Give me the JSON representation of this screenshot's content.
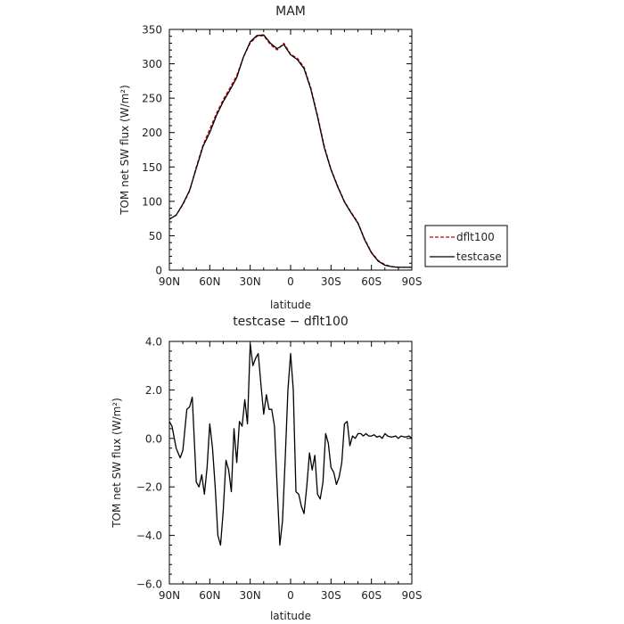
{
  "chart_data": [
    {
      "type": "line",
      "title": "MAM",
      "xlabel": "latitude",
      "ylabel": "TOM net SW flux (W/m²)",
      "xlim": [
        90,
        -90
      ],
      "ylim": [
        0,
        350
      ],
      "x_ticks": [
        90,
        60,
        30,
        0,
        -30,
        -60,
        -90
      ],
      "x_tick_labels": [
        "90N",
        "60N",
        "30N",
        "0",
        "30S",
        "60S",
        "90S"
      ],
      "y_ticks": [
        0,
        50,
        100,
        150,
        200,
        250,
        300,
        350
      ],
      "y_tick_labels": [
        "0",
        "50",
        "100",
        "150",
        "200",
        "250",
        "300",
        "350"
      ],
      "legend": [
        "dflt100",
        "testcase"
      ],
      "legend_placement": "right",
      "series": [
        {
          "name": "dflt100",
          "color": "#cc0000",
          "style": "dashed",
          "x": [
            90,
            85,
            80,
            75,
            70,
            65,
            60,
            55,
            50,
            45,
            40,
            35,
            30,
            25,
            20,
            15,
            10,
            5,
            0,
            -5,
            -10,
            -15,
            -20,
            -25,
            -30,
            -35,
            -40,
            -45,
            -50,
            -55,
            -60,
            -65,
            -70,
            -75,
            -80,
            -85,
            -90
          ],
          "y": [
            74,
            80,
            95,
            115,
            150,
            182,
            205,
            228,
            248,
            265,
            283,
            310,
            330,
            340,
            341,
            328,
            320,
            330,
            314,
            308,
            295,
            265,
            225,
            180,
            147,
            122,
            100,
            84,
            69,
            45,
            26,
            14,
            8,
            5,
            4,
            4,
            4
          ]
        },
        {
          "name": "testcase",
          "color": "#000000",
          "style": "solid",
          "x": [
            90,
            85,
            80,
            75,
            70,
            65,
            60,
            55,
            50,
            45,
            40,
            35,
            30,
            25,
            20,
            15,
            10,
            5,
            0,
            -5,
            -10,
            -15,
            -20,
            -25,
            -30,
            -35,
            -40,
            -45,
            -50,
            -55,
            -60,
            -65,
            -70,
            -75,
            -80,
            -85,
            -90
          ],
          "y": [
            74,
            80,
            96,
            116,
            148,
            180,
            200,
            225,
            245,
            262,
            280,
            310,
            332,
            341,
            342,
            330,
            322,
            328,
            313,
            306,
            293,
            263,
            223,
            178,
            146,
            121,
            99,
            83,
            68,
            44,
            25,
            13,
            7,
            5,
            4,
            4,
            4
          ]
        }
      ]
    },
    {
      "type": "line",
      "title": "testcase − dflt100",
      "xlabel": "latitude",
      "ylabel": "TOM net SW flux (W/m²)",
      "xlim": [
        90,
        -90
      ],
      "ylim": [
        -6,
        4
      ],
      "x_ticks": [
        90,
        60,
        30,
        0,
        -30,
        -60,
        -90
      ],
      "x_tick_labels": [
        "90N",
        "60N",
        "30N",
        "0",
        "30S",
        "60S",
        "90S"
      ],
      "y_ticks": [
        -6,
        -4,
        -2,
        0,
        2,
        4
      ],
      "y_tick_labels": [
        "−6.0",
        "−4.0",
        "−2.0",
        "0.0",
        "2.0",
        "4.0"
      ],
      "series": [
        {
          "name": "testcase − dflt100",
          "color": "#000000",
          "style": "solid",
          "x": [
            90,
            88,
            85,
            82,
            80,
            77,
            75,
            73,
            70,
            68,
            66,
            64,
            62,
            60,
            58,
            56,
            54,
            52,
            50,
            48,
            46,
            44,
            42,
            40,
            38,
            36,
            34,
            32,
            30,
            28,
            26,
            24,
            22,
            20,
            18,
            16,
            14,
            12,
            10,
            8,
            6,
            4,
            2,
            0,
            -2,
            -4,
            -6,
            -8,
            -10,
            -12,
            -14,
            -16,
            -18,
            -20,
            -22,
            -24,
            -26,
            -28,
            -30,
            -32,
            -34,
            -36,
            -38,
            -40,
            -42,
            -44,
            -46,
            -48,
            -50,
            -52,
            -54,
            -56,
            -58,
            -60,
            -62,
            -64,
            -66,
            -68,
            -70,
            -72,
            -75,
            -78,
            -80,
            -82,
            -85,
            -88,
            -90
          ],
          "y": [
            0.7,
            0.5,
            -0.4,
            -0.8,
            -0.5,
            1.2,
            1.3,
            1.7,
            -1.8,
            -2.0,
            -1.5,
            -2.3,
            -1.2,
            0.6,
            -0.4,
            -2.0,
            -4.0,
            -4.4,
            -3.0,
            -0.9,
            -1.3,
            -2.2,
            0.4,
            -1.0,
            0.7,
            0.5,
            1.6,
            0.6,
            3.9,
            3.0,
            3.3,
            3.5,
            2.2,
            1.0,
            1.8,
            1.2,
            1.2,
            0.5,
            -2.0,
            -4.4,
            -3.4,
            -0.8,
            2.0,
            3.5,
            2.0,
            -2.2,
            -2.3,
            -2.8,
            -3.1,
            -2.0,
            -0.6,
            -1.3,
            -0.7,
            -2.3,
            -2.5,
            -1.8,
            0.2,
            -0.2,
            -1.2,
            -1.4,
            -1.9,
            -1.6,
            -1.0,
            0.6,
            0.7,
            -0.3,
            0.1,
            0.0,
            0.2,
            0.2,
            0.1,
            0.2,
            0.1,
            0.1,
            0.15,
            0.05,
            0.1,
            0.0,
            0.2,
            0.1,
            0.05,
            0.1,
            0.0,
            0.1,
            0.05,
            0.1,
            0.0
          ]
        }
      ]
    }
  ]
}
